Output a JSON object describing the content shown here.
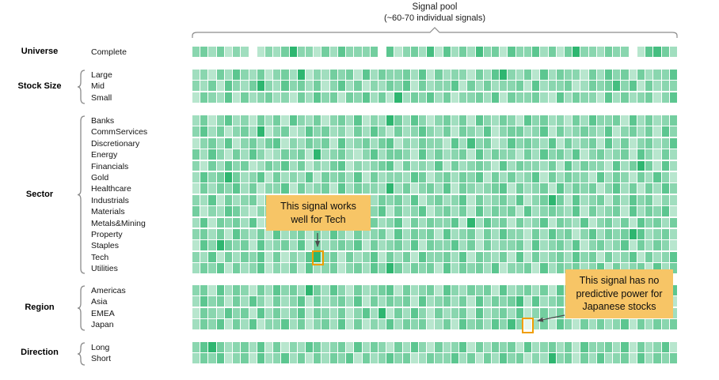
{
  "header": {
    "title": "Signal pool",
    "subtitle": "(~60-70 individual signals)"
  },
  "groups": [
    {
      "name": "Universe",
      "rows": [
        "Complete"
      ]
    },
    {
      "name": "Stock Size",
      "rows": [
        "Large",
        "Mid",
        "Small"
      ]
    },
    {
      "name": "Sector",
      "rows": [
        "Banks",
        "CommServices",
        "Discretionary",
        "Energy",
        "Financials",
        "Gold",
        "Healthcare",
        "Industrials",
        "Materials",
        "Metals&Mining",
        "Property",
        "Staples",
        "Tech",
        "Utilities"
      ]
    },
    {
      "name": "Region",
      "rows": [
        "Americas",
        "Asia",
        "EMEA",
        "Japan"
      ]
    },
    {
      "name": "Direction",
      "rows": [
        "Long",
        "Short"
      ]
    }
  ],
  "chart_data": {
    "type": "heatmap",
    "title": "Signal pool",
    "subtitle": "(~60-70 individual signals)",
    "columns": 60,
    "colorscale": {
      "low": "#ffffff",
      "high": "#00a651"
    },
    "value_scale": "digits 0-9 = relative signal strength (light to dark green), '.' = blank cell",
    "row_groups": [
      "Universe",
      "Stock Size",
      "Sector",
      "Region",
      "Direction"
    ],
    "row_labels": [
      "Complete",
      "Large",
      "Mid",
      "Small",
      "Banks",
      "CommServices",
      "Discretionary",
      "Energy",
      "Financials",
      "Gold",
      "Healthcare",
      "Industrials",
      "Materials",
      "Metals&Mining",
      "Property",
      "Staples",
      "Tech",
      "Utilities",
      "Americas",
      "Asia",
      "EMEA",
      "Japan",
      "Long",
      "Short"
    ],
    "matrix": [
      "4535243.243584425364445.624537263537452644635258443544.26753",
      "342536435245382435452635445362534425368435263544253645253446",
      "435264358436453524635243546253446253534452634452354574625344",
      "254362534534253645254635283546352445362544532635442635345246",
      "352463425352643524536243853642453526435426453425364452635345",
      "463524538245236453425364253464352543624553462534543624535264",
      "245362453562435452634535624354426374523645436253452635245346",
      "536425364235452834532463554263534526354425364536245345264253",
      "425364523546352435624345625343625345426354435263544263585263",
      "364585346253436254536253443652453546253534625354426354253642",
      "253546352446253452635443835245362543456253452635452463525364",
      "436253452635452634542635453624534625345362458526345253645243",
      "524365324543685453623546253462453526354526345436253452635462",
      "362545362452635452436253462535446283645253462543624535264535",
      "453526435263452536425345263545263452536442536452463545863453",
      "264854526345362534546253453625446352534452634536245346253542",
      "436253546252436845253462535264453625435262534536452534625346",
      "354625346243526345245364853545263545362445263545346253452635",
      "452635425364538536425345625345264354526345352643525364253546",
      "364525364253462534536253545263453526354572634536245243653452",
      "254364526353462543524638253642534526345362453526354352645243",
      "354625362446352453625243635452352645364740352642535346253545",
      "468534536252436534526354253642534625354526345352644536253462",
      "354624526346352535462534645235446352536452438452536345263545"
    ],
    "legend_position": "none",
    "grid": false
  },
  "annotations": [
    {
      "text": "This signal works well for Tech",
      "group": "Sector",
      "row": "Tech",
      "col": 15
    },
    {
      "text": "This signal has no predictive power for Japanese stocks",
      "group": "Region",
      "row": "Japan",
      "col": 41
    }
  ],
  "colors": {
    "cell_low": "#ffffff",
    "cell_high": "#00a651",
    "callout_bg": "#f7c566",
    "highlight_border": "#f09e00",
    "arrow": "#4d4d4d",
    "bracket": "#8c8c8c"
  }
}
